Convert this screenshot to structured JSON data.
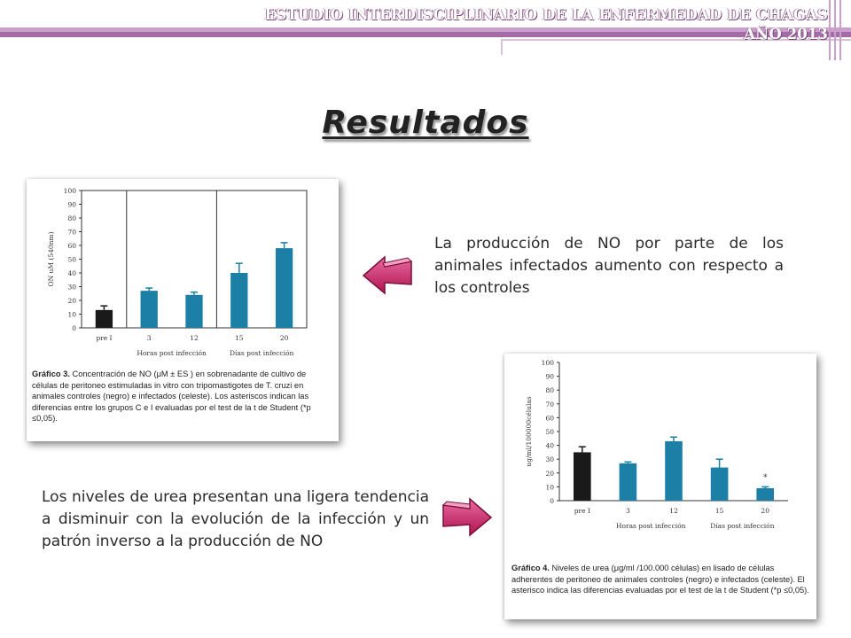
{
  "header": {
    "line1": "ESTUDIO INTERDISCIPLINARIO  DE LA ENFERMEDAD DE CHAGAS",
    "line2": "AÑO 2013"
  },
  "page_title": "Resultados",
  "paragraphs": {
    "no_text": "La producción de NO por parte de los animales infectados aumento con respecto a los controles",
    "urea_text": "Los niveles de urea presentan una ligera tendencia a disminuir con  la evolución de la infección y un patrón inverso a la producción de NO"
  },
  "figures": {
    "fig1": {
      "caption_label": "Gráfico 3.",
      "caption_text": "Concentración de NO (μM ± ES ) en sobrenadante de cultivo de células de peritoneo estimuladas in vitro con tripomastigotes de T. cruzi en animales controles  (negro) e infectados (celeste). Los asteriscos indican las diferencias entre los grupos C e I evaluadas por el test de la t de Student (*p ≤0,05)."
    },
    "fig2": {
      "caption_label": "Gráfico 4.",
      "caption_text": "Niveles de urea (μg/ml /100.000 células) en lisado de células adherentes de peritoneo de animales  controles (negro) e infectados (celeste). El asterisco indica las diferencias evaluadas por el test de la t de Student (*p ≤0,05)."
    }
  },
  "colors": {
    "control": "#1a1a1a",
    "infected": "#1b7fa6",
    "header_purple": "#a56aa8",
    "arrow": "#c2185b"
  },
  "icons": {
    "arrow_left": "arrow-left-icon",
    "arrow_right": "arrow-right-icon"
  },
  "chart_data": [
    {
      "type": "bar",
      "title": "",
      "ylabel": "ON uM (540nm)",
      "ylim": [
        0,
        100
      ],
      "yticks": [
        "0",
        "10",
        "20",
        "30",
        "40",
        "50",
        "60",
        "70",
        "80",
        "90",
        "100"
      ],
      "categories": [
        "pre I",
        "3",
        "12",
        "15",
        "20"
      ],
      "values": [
        13,
        27,
        24,
        40,
        58
      ],
      "errors": [
        3,
        2,
        2,
        7,
        4
      ],
      "bar_colors": [
        "#1a1a1a",
        "#1b7fa6",
        "#1b7fa6",
        "#1b7fa6",
        "#1b7fa6"
      ],
      "group_labels": [
        "Horas post infección",
        "Días post infección"
      ],
      "grid": false
    },
    {
      "type": "bar",
      "title": "",
      "ylabel": "ug/ml/100000células",
      "ylim": [
        0,
        100
      ],
      "yticks": [
        "0",
        "10",
        "20",
        "30",
        "40",
        "50",
        "60",
        "70",
        "80",
        "90",
        "100"
      ],
      "categories": [
        "pre I",
        "3",
        "12",
        "15",
        "20"
      ],
      "values": [
        35,
        27,
        43,
        24,
        9
      ],
      "errors": [
        4,
        1,
        3,
        6,
        1
      ],
      "bar_colors": [
        "#1a1a1a",
        "#1b7fa6",
        "#1b7fa6",
        "#1b7fa6",
        "#1b7fa6"
      ],
      "group_labels": [
        "Horas post infección",
        "Días post infección"
      ],
      "annotations": [
        "*"
      ],
      "grid": false
    }
  ]
}
